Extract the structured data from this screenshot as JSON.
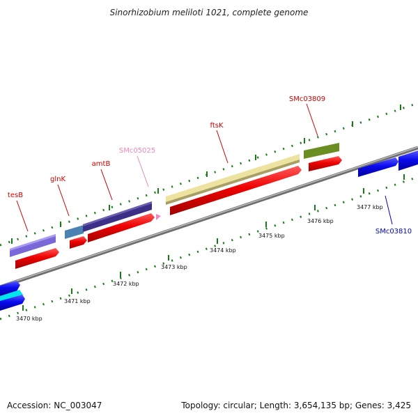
{
  "title": "Sinorhizobium meliloti 1021, complete genome",
  "footer": {
    "accession": "Accession: NC_003047",
    "summary": "Topology: circular; Length: 3,654,135 bp; Genes: 3,425"
  },
  "genes": {
    "tesB": {
      "label": "tesB",
      "color": "#cc0000"
    },
    "glnK": {
      "label": "glnK",
      "color": "#cc0000"
    },
    "amtB": {
      "label": "amtB",
      "color": "#cc0000"
    },
    "SMc05025": {
      "label": "SMc05025",
      "color": "#ee88bb"
    },
    "ftsK": {
      "label": "ftsK",
      "color": "#cc0000"
    },
    "SMc03809": {
      "label": "SMc03809",
      "color": "#cc0000"
    },
    "SMc03810": {
      "label": "SMc03810",
      "color": "#0000cc"
    }
  },
  "ticks": [
    "3470 kbp",
    "3471 kbp",
    "3472 kbp",
    "3473 kbp",
    "3474 kbp",
    "3475 kbp",
    "3476 kbp",
    "3477 kbp"
  ],
  "colors": {
    "backbone": "#8a8a8a",
    "ticks": "#1a7a1a",
    "forward_cds": "#ee0000",
    "reverse_cds": "#0a0aee",
    "cog_tesB": "#7b68d8",
    "cog_glnK": "#4a82b4",
    "cog_amtB": "#3c2f86",
    "cog_ftsK": "#eee2a0",
    "cog_SMc03809": "#6b8e23",
    "reverse_cyan": "#00e5ee"
  }
}
